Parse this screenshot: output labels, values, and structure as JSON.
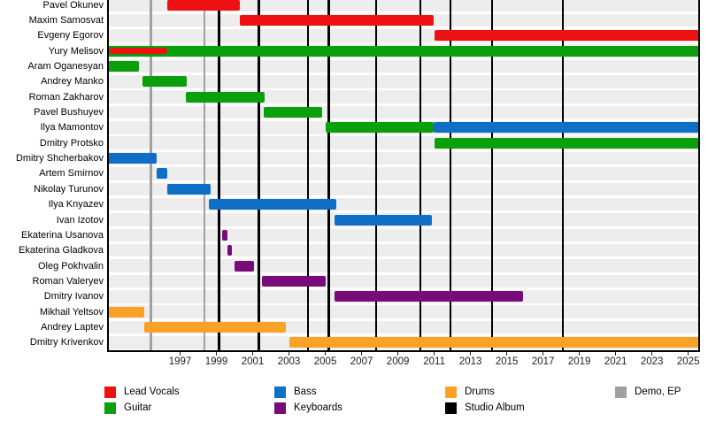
{
  "palette": {
    "lead_vocals": "#ee1111",
    "guitar": "#0ba00b",
    "bass": "#0f6fc6",
    "keyboards": "#780b78",
    "drums": "#f9a226",
    "studio_album": "#000000",
    "demo_ep": "#a0a0a0",
    "stripe": "#ededed",
    "axis": "#000000"
  },
  "chart_data": {
    "type": "timeline",
    "xlabel": "",
    "ylabel": "",
    "xlim": [
      1993.0,
      2025.6
    ],
    "x_ticks": [
      1997,
      1999,
      2001,
      2003,
      2005,
      2007,
      2009,
      2011,
      2013,
      2015,
      2017,
      2019,
      2021,
      2023,
      2025
    ],
    "grid": false,
    "legend_position": "bottom",
    "members": [
      {
        "name": "Pavel Okunev",
        "bars": [
          {
            "role": "lead_vocals",
            "start": 1996.3,
            "end": 2000.3
          }
        ]
      },
      {
        "name": "Maxim Samosvat",
        "bars": [
          {
            "role": "lead_vocals",
            "start": 2000.3,
            "end": 2010.95
          }
        ]
      },
      {
        "name": "Evgeny Egorov",
        "bars": [
          {
            "role": "lead_vocals",
            "start": 2011.0,
            "end": 2025.6
          }
        ]
      },
      {
        "name": "Yury Melisov",
        "bars": [
          {
            "role": "guitar",
            "start": 1993.0,
            "end": 2025.6
          },
          {
            "role": "lead_vocals",
            "start": 1993.1,
            "end": 1996.3,
            "overlay": true
          }
        ]
      },
      {
        "name": "Aram Oganesyan",
        "bars": [
          {
            "role": "guitar",
            "start": 1993.0,
            "end": 1994.75
          }
        ]
      },
      {
        "name": "Andrey Manko",
        "bars": [
          {
            "role": "guitar",
            "start": 1994.95,
            "end": 1997.35
          }
        ]
      },
      {
        "name": "Roman Zakharov",
        "bars": [
          {
            "role": "guitar",
            "start": 1997.3,
            "end": 2001.65
          }
        ]
      },
      {
        "name": "Pavel Bushuyev",
        "bars": [
          {
            "role": "guitar",
            "start": 2001.6,
            "end": 2004.85
          }
        ]
      },
      {
        "name": "Ilya Mamontov",
        "bars": [
          {
            "role": "guitar",
            "start": 2005.0,
            "end": 2010.95
          },
          {
            "role": "bass",
            "start": 2010.95,
            "end": 2025.6
          }
        ]
      },
      {
        "name": "Dmitry Protsko",
        "bars": [
          {
            "role": "guitar",
            "start": 2011.0,
            "end": 2025.6
          }
        ]
      },
      {
        "name": "Dmitry Shcherbakov",
        "bars": [
          {
            "role": "bass",
            "start": 1993.0,
            "end": 1995.7
          }
        ]
      },
      {
        "name": "Artem Smirnov",
        "bars": [
          {
            "role": "bass",
            "start": 1995.7,
            "end": 1996.3
          }
        ]
      },
      {
        "name": "Nikolay Turunov",
        "bars": [
          {
            "role": "bass",
            "start": 1996.3,
            "end": 1998.7
          }
        ]
      },
      {
        "name": "Ilya Knyazev",
        "bars": [
          {
            "role": "bass",
            "start": 1998.6,
            "end": 2005.6
          }
        ]
      },
      {
        "name": "Ivan Izotov",
        "bars": [
          {
            "role": "bass",
            "start": 2005.5,
            "end": 2010.85
          }
        ]
      },
      {
        "name": "Ekaterina Usanova",
        "bars": [
          {
            "role": "keyboards",
            "start": 1999.3,
            "end": 1999.6
          }
        ]
      },
      {
        "name": "Ekaterina Gladkova",
        "bars": [
          {
            "role": "keyboards",
            "start": 1999.6,
            "end": 1999.85
          }
        ]
      },
      {
        "name": "Oleg Pokhvalin",
        "bars": [
          {
            "role": "keyboards",
            "start": 2000.0,
            "end": 2001.05
          }
        ]
      },
      {
        "name": "Roman Valeryev",
        "bars": [
          {
            "role": "keyboards",
            "start": 2001.5,
            "end": 2005.0
          }
        ]
      },
      {
        "name": "Dmitry Ivanov",
        "bars": [
          {
            "role": "keyboards",
            "start": 2005.5,
            "end": 2015.9
          }
        ]
      },
      {
        "name": "Mikhail Yeltsov",
        "bars": [
          {
            "role": "drums",
            "start": 1993.0,
            "end": 1995.0
          }
        ]
      },
      {
        "name": "Andrey Laptev",
        "bars": [
          {
            "role": "drums",
            "start": 1995.0,
            "end": 2002.85
          }
        ]
      },
      {
        "name": "Dmitry Krivenkov",
        "bars": [
          {
            "role": "drums",
            "start": 2003.0,
            "end": 2025.6
          }
        ]
      }
    ],
    "releases": {
      "studio_albums": [
        1999.15,
        2001.35,
        2004.05,
        2005.2,
        2007.8,
        2010.25,
        2011.9,
        2014.2,
        2018.1
      ],
      "demos_eps": [
        1995.4,
        1998.35
      ]
    }
  },
  "legend": {
    "items": [
      {
        "label": "Lead Vocals",
        "role": "lead_vocals",
        "col": 0,
        "row": 0
      },
      {
        "label": "Guitar",
        "role": "guitar",
        "col": 0,
        "row": 1
      },
      {
        "label": "Bass",
        "role": "bass",
        "col": 1,
        "row": 0
      },
      {
        "label": "Keyboards",
        "role": "keyboards",
        "col": 1,
        "row": 1
      },
      {
        "label": "Drums",
        "role": "drums",
        "col": 2,
        "row": 0
      },
      {
        "label": "Studio Album",
        "role": "studio_album",
        "col": 2,
        "row": 1
      },
      {
        "label": "Demo, EP",
        "role": "demo_ep",
        "col": 3,
        "row": 0
      }
    ]
  }
}
